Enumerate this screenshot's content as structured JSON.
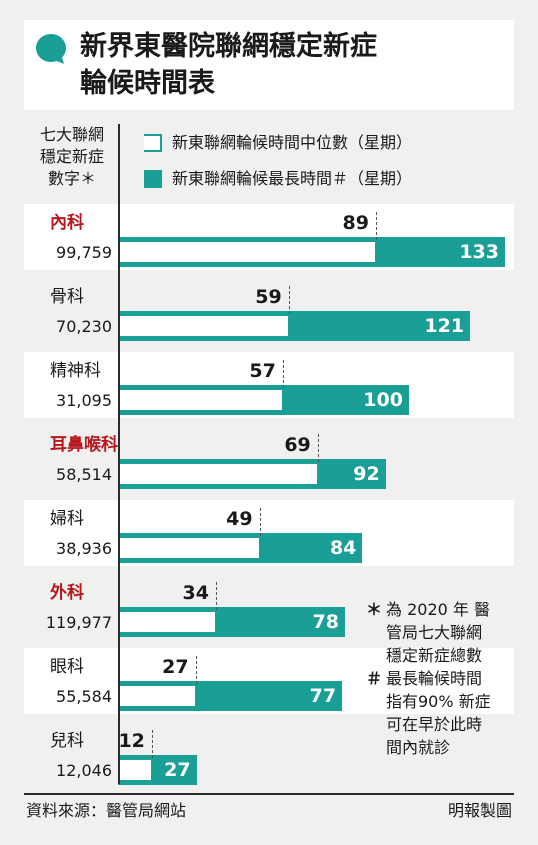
{
  "title": {
    "line1": "新界東醫院聯網穩定新症",
    "line2": "輪候時間表"
  },
  "header_label": [
    "七大聯網",
    "穩定新症",
    "數字＊"
  ],
  "legend": {
    "median": "新東聯網輪候時間中位數（星期）",
    "max": "新東聯網輪候最長時間＃（星期）"
  },
  "colors": {
    "teal": "#1a9f97",
    "highlight": "#b8161e"
  },
  "chart_data": {
    "type": "bar",
    "orientation": "horizontal",
    "categories": [
      "內科",
      "骨科",
      "精神科",
      "耳鼻喉科",
      "婦科",
      "外科",
      "眼科",
      "兒科"
    ],
    "highlighted": [
      true,
      false,
      false,
      true,
      false,
      true,
      false,
      false
    ],
    "counts": [
      "99,759",
      "70,230",
      "31,095",
      "58,514",
      "38,936",
      "119,977",
      "55,584",
      "12,046"
    ],
    "series": [
      {
        "name": "新東聯網輪候時間中位數（星期）",
        "values": [
          89,
          59,
          57,
          69,
          49,
          34,
          27,
          12
        ]
      },
      {
        "name": "新東聯網輪候最長時間＃（星期）",
        "values": [
          133,
          121,
          100,
          92,
          84,
          78,
          77,
          27
        ]
      }
    ],
    "xlim": [
      0,
      133
    ]
  },
  "notes": [
    {
      "mark": "＊",
      "lines": [
        "為 2020 年 醫",
        "管局七大聯網",
        "穩定新症總數"
      ]
    },
    {
      "mark": "＃",
      "lines": [
        "最長輪候時間",
        "指有90% 新症",
        "可在早於此時",
        "間內就診"
      ]
    }
  ],
  "source": "資料來源：醫管局網站",
  "credit": "明報製圖"
}
